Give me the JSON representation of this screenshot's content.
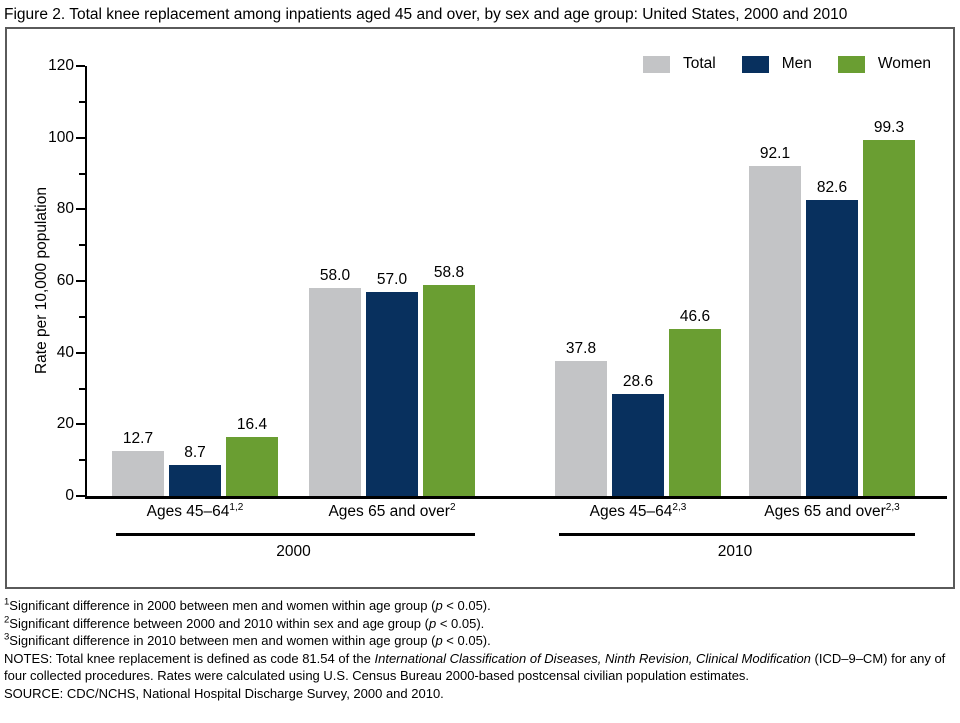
{
  "page": {
    "title": "Figure 2. Total knee replacement among inpatients aged 45 and over, by sex and age group: United States, 2000 and 2010"
  },
  "chart_data": {
    "type": "bar",
    "title": "Figure 2. Total knee replacement among inpatients aged 45 and over, by sex and age group: United States, 2000 and 2010",
    "xlabel": "",
    "ylabel": "Rate per 10,000 population",
    "ylim": [
      0,
      120
    ],
    "yticks": [
      0,
      20,
      40,
      60,
      80,
      100,
      120
    ],
    "minor_yticks": [
      10,
      30,
      50,
      70,
      90,
      110
    ],
    "grid": false,
    "legend_position": "top-right",
    "legend": [
      {
        "name": "Total",
        "color": "#c3c4c6"
      },
      {
        "name": "Men",
        "color": "#08305e"
      },
      {
        "name": "Women",
        "color": "#6a9e32"
      }
    ],
    "year_groups": [
      {
        "year": "2000",
        "age_groups": [
          {
            "label": "Ages 45–64",
            "superscript": "1,2",
            "values": [
              12.7,
              8.7,
              16.4
            ],
            "labels": [
              "12.7",
              "8.7",
              "16.4"
            ]
          },
          {
            "label": "Ages 65 and over",
            "superscript": "2",
            "values": [
              58.0,
              57.0,
              58.8
            ],
            "labels": [
              "58.0",
              "57.0",
              "58.8"
            ]
          }
        ]
      },
      {
        "year": "2010",
        "age_groups": [
          {
            "label": "Ages 45–64",
            "superscript": "2,3",
            "values": [
              37.8,
              28.6,
              46.6
            ],
            "labels": [
              "37.8",
              "28.6",
              "46.6"
            ]
          },
          {
            "label": "Ages 65 and over",
            "superscript": "2,3",
            "values": [
              92.1,
              82.6,
              99.3
            ],
            "labels": [
              "92.1",
              "82.6",
              "99.3"
            ]
          }
        ]
      }
    ]
  },
  "footnotes": [
    [
      {
        "sup": "1"
      },
      {
        "text": "Significant difference in 2000 between men and women within age group ("
      },
      {
        "italic": "p"
      },
      {
        "text": " < 0.05)."
      }
    ],
    [
      {
        "sup": "2"
      },
      {
        "text": "Significant difference between 2000 and 2010 within sex and age group ("
      },
      {
        "italic": "p"
      },
      {
        "text": " < 0.05)."
      }
    ],
    [
      {
        "sup": "3"
      },
      {
        "text": "Significant difference in 2010 between men and women within age group ("
      },
      {
        "italic": "p"
      },
      {
        "text": " < 0.05)."
      }
    ]
  ],
  "notes": [
    {
      "text": "NOTES: Total knee replacement is defined as code 81.54 of the "
    },
    {
      "italic": "International Classification of Diseases, Ninth Revision, Clinical Modification"
    },
    {
      "text": " (ICD–9–CM) for any of four collected procedures. Rates were calculated using U.S. Census Bureau 2000-based postcensal civilian population estimates."
    }
  ],
  "source_line": "SOURCE: CDC/NCHS, National Hospital Discharge Survey, 2000 and 2010."
}
